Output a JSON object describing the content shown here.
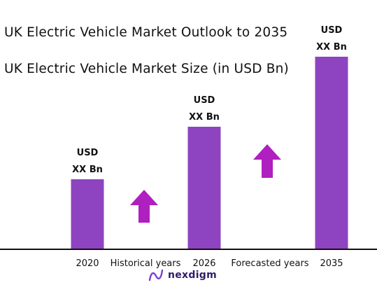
{
  "header": {
    "title": "UK Electric Vehicle Market Outlook to 2035",
    "subtitle": "UK Electric Vehicle Market Size (in USD Bn)"
  },
  "chart_data": {
    "type": "bar",
    "categories": [
      "2020",
      "2026",
      "2035"
    ],
    "values": [
      1.0,
      1.75,
      2.75
    ],
    "data_labels": [
      [
        "USD",
        "XX Bn"
      ],
      [
        "USD",
        "XX Bn"
      ],
      [
        "USD",
        "XX Bn"
      ]
    ],
    "period_labels": [
      "Historical years",
      "Forecasted years"
    ],
    "bar_color": "#8e44c0",
    "arrow_color": "#b01fc0",
    "grid": false
  },
  "brand": {
    "name": "nexdigm",
    "icon": "nexdigm-logo-icon",
    "color": "#2f1d6b"
  }
}
